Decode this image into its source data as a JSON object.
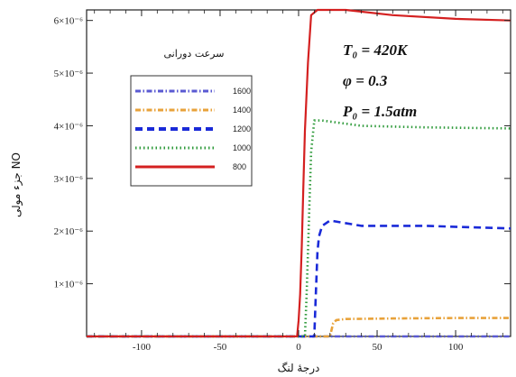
{
  "chart_data": {
    "type": "line",
    "xlabel": "درجهٔ لنگ",
    "ylabel": "جزء مولی NO",
    "xlim": [
      -135,
      135
    ],
    "ylim": [
      0,
      6.2e-06
    ],
    "x_ticks": [
      -100,
      -50,
      0,
      50,
      100
    ],
    "x_tick_labels": [
      "-100",
      "-50",
      "0",
      "50",
      "100"
    ],
    "y_ticks": [
      1e-06,
      2e-06,
      3e-06,
      4e-06,
      5e-06,
      6e-06
    ],
    "y_tick_labels": [
      "1×10⁻⁶",
      "2×10⁻⁶",
      "3×10⁻⁶",
      "4×10⁻⁶",
      "5×10⁻⁶",
      "6×10⁻⁶"
    ],
    "legend": {
      "title": "سرعت دورانی",
      "placement": "upper-left",
      "entries": [
        "1600",
        "1400",
        "1200",
        "1000",
        "800"
      ]
    },
    "annotations": [
      "T₀ = 420K",
      "φ = 0.3",
      "P₀ = 1.5atm"
    ],
    "series": [
      {
        "name": "1600",
        "color": "#5a5ad2",
        "dash": "dashdot",
        "x": [
          -135,
          135
        ],
        "y": [
          0,
          0
        ]
      },
      {
        "name": "1400",
        "color": "#e8a23a",
        "dash": "dashdot",
        "x": [
          -135,
          20,
          22,
          24,
          30,
          60,
          100,
          135
        ],
        "y": [
          0,
          0,
          2.5e-07,
          3.1e-07,
          3.3e-07,
          3.4e-07,
          3.5e-07,
          3.5e-07
        ]
      },
      {
        "name": "1200",
        "color": "#1a2ad8",
        "dash": "dash",
        "x": [
          -135,
          10,
          11,
          12,
          13,
          15,
          20,
          40,
          80,
          135
        ],
        "y": [
          0,
          0,
          8e-07,
          1.6e-06,
          1.9e-06,
          2.1e-06,
          2.2e-06,
          2.1e-06,
          2.1e-06,
          2.05e-06
        ]
      },
      {
        "name": "1000",
        "color": "#2e9a3a",
        "dash": "dot",
        "x": [
          -135,
          4,
          5,
          6,
          7,
          8,
          10,
          15,
          40,
          80,
          135
        ],
        "y": [
          0,
          0,
          7e-07,
          1.6e-06,
          2.6e-06,
          3.5e-06,
          4.1e-06,
          4.1e-06,
          4e-06,
          3.97e-06,
          3.95e-06
        ]
      },
      {
        "name": "800",
        "color": "#d42020",
        "dash": "solid",
        "x": [
          -135,
          -1,
          0,
          1,
          2,
          3,
          4,
          6,
          8,
          12,
          30,
          60,
          100,
          135
        ],
        "y": [
          0,
          0,
          3e-07,
          8e-07,
          1.7e-06,
          2.8e-06,
          3.9e-06,
          5.2e-06,
          6.1e-06,
          6.2e-06,
          6.2e-06,
          6.1e-06,
          6.03e-06,
          6e-06
        ]
      }
    ]
  }
}
